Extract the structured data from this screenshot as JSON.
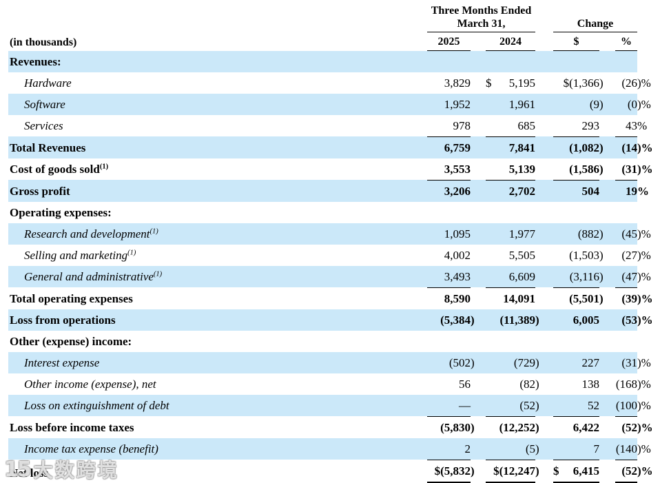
{
  "colors": {
    "stripe": "#cbe8f9",
    "text": "#000000",
    "rule": "#000000",
    "background": "#ffffff"
  },
  "header": {
    "in_thousands": "(in thousands)",
    "group1_line1": "Three Months Ended",
    "group1_line2": "March 31,",
    "group2": "Change",
    "col_2025": "2025",
    "col_2024": "2024",
    "col_dollar": "$",
    "col_percent": "%"
  },
  "table": {
    "rows": [
      {
        "label": "Revenues:",
        "sup": "",
        "i": false,
        "shaded": true,
        "rule": "",
        "cells": [
          "",
          "",
          "",
          ""
        ]
      },
      {
        "label": "Hardware",
        "sup": "",
        "i": true,
        "shaded": false,
        "rule": "",
        "cells": [
          "3,829",
          "$ 5,195",
          "$(1,366)",
          "(26)%"
        ]
      },
      {
        "label": "Software",
        "sup": "",
        "i": true,
        "shaded": true,
        "rule": "",
        "cells": [
          "1,952",
          "1,961",
          "(9)",
          "(0)%"
        ]
      },
      {
        "label": "Services",
        "sup": "",
        "i": true,
        "shaded": false,
        "rule": "single",
        "cells": [
          "978",
          "685",
          "293",
          "43%"
        ]
      },
      {
        "label": "Total Revenues",
        "sup": "",
        "i": false,
        "shaded": true,
        "rule": "",
        "cells": [
          "6,759",
          "7,841",
          "(1,082)",
          "(14)%"
        ]
      },
      {
        "label": "Cost of goods sold",
        "sup": "(1)",
        "i": false,
        "shaded": false,
        "rule": "single",
        "cells": [
          "3,553",
          "5,139",
          "(1,586)",
          "(31)%"
        ]
      },
      {
        "label": "Gross profit",
        "sup": "",
        "i": false,
        "shaded": true,
        "rule": "",
        "cells": [
          "3,206",
          "2,702",
          "504",
          "19%"
        ]
      },
      {
        "label": "Operating expenses:",
        "sup": "",
        "i": false,
        "shaded": false,
        "rule": "",
        "cells": [
          "",
          "",
          "",
          ""
        ]
      },
      {
        "label": "Research and development",
        "sup": "(1)",
        "i": true,
        "shaded": true,
        "rule": "",
        "cells": [
          "1,095",
          "1,977",
          "(882)",
          "(45)%"
        ]
      },
      {
        "label": "Selling and marketing",
        "sup": "(1)",
        "i": true,
        "shaded": false,
        "rule": "",
        "cells": [
          "4,002",
          "5,505",
          "(1,503)",
          "(27)%"
        ]
      },
      {
        "label": "General and administrative",
        "sup": "(1)",
        "i": true,
        "shaded": true,
        "rule": "single",
        "cells": [
          "3,493",
          "6,609",
          "(3,116)",
          "(47)%"
        ]
      },
      {
        "label": "Total operating expenses",
        "sup": "",
        "i": false,
        "shaded": false,
        "rule": "",
        "cells": [
          "8,590",
          "14,091",
          "(5,501)",
          "(39)%"
        ]
      },
      {
        "label": "Loss from operations",
        "sup": "",
        "i": false,
        "shaded": true,
        "rule": "",
        "cells": [
          "(5,384)",
          "(11,389)",
          "6,005",
          "(53)%"
        ]
      },
      {
        "label": "Other (expense) income:",
        "sup": "",
        "i": false,
        "shaded": false,
        "rule": "",
        "cells": [
          "",
          "",
          "",
          ""
        ]
      },
      {
        "label": "Interest expense",
        "sup": "",
        "i": true,
        "shaded": true,
        "rule": "",
        "cells": [
          "(502)",
          "(729)",
          "227",
          "(31)%"
        ]
      },
      {
        "label": "Other income (expense), net",
        "sup": "",
        "i": true,
        "shaded": false,
        "rule": "",
        "cells": [
          "56",
          "(82)",
          "138",
          "(168)%"
        ]
      },
      {
        "label": "Loss on extinguishment of debt",
        "sup": "",
        "i": true,
        "shaded": true,
        "rule": "single",
        "cells": [
          "—",
          "(52)",
          "52",
          "(100)%"
        ]
      },
      {
        "label": "Loss before income taxes",
        "sup": "",
        "i": false,
        "shaded": false,
        "rule": "",
        "cells": [
          "(5,830)",
          "(12,252)",
          "6,422",
          "(52)%"
        ]
      },
      {
        "label": "Income tax expense (benefit)",
        "sup": "",
        "i": true,
        "shaded": true,
        "rule": "single",
        "cells": [
          "2",
          "(5)",
          "7",
          "(140)%"
        ]
      },
      {
        "label": "Net loss",
        "sup": "",
        "i": false,
        "shaded": false,
        "rule": "double",
        "cells": [
          "$(5,832)",
          "$(12,247)",
          "$ 6,415",
          "(52)%"
        ]
      }
    ]
  },
  "watermark": {
    "logo": "15",
    "text": "大数跨境"
  }
}
